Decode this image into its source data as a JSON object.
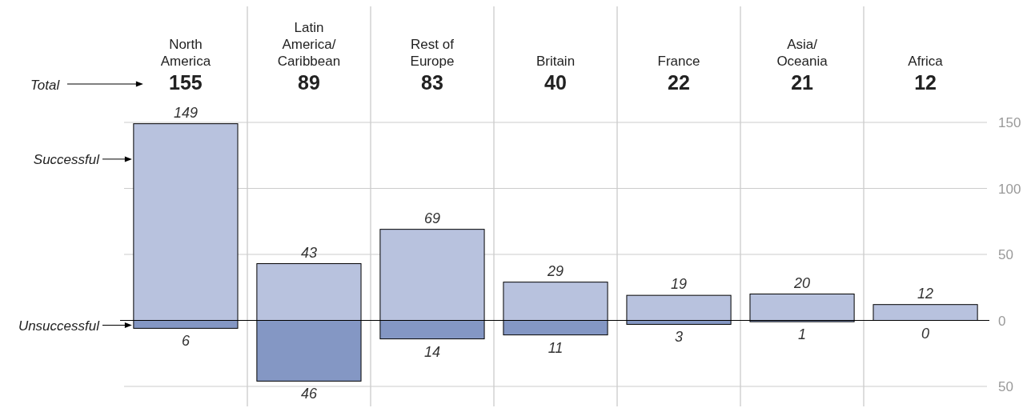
{
  "chart_data": {
    "type": "bar",
    "stacked": true,
    "categories": [
      "North America",
      "Latin America/ Caribbean",
      "Rest of Europe",
      "Britain",
      "France",
      "Asia/ Oceania",
      "Africa"
    ],
    "series": [
      {
        "name": "Successful",
        "color": "#b8c2de",
        "values": [
          149,
          43,
          69,
          29,
          19,
          20,
          12
        ],
        "value_labels": [
          "149",
          "43",
          "69",
          "29",
          "19",
          "20",
          "12"
        ]
      },
      {
        "name": "Unsuccessful",
        "color": "#8497c4",
        "values": [
          -6,
          -46,
          -14,
          -11,
          -3,
          -1,
          0
        ]
      }
    ],
    "annotations": [
      "Total",
      "155",
      "89",
      "83",
      "40",
      "22",
      "21",
      "12",
      {
        "text": "6",
        "x": "North America",
        "y": -6
      },
      {
        "text": "46",
        "x": "Latin America/ Caribbean",
        "y": -46
      },
      {
        "text": "14",
        "x": "Rest of Europe",
        "y": -14
      },
      {
        "text": "11",
        "x": "Britain",
        "y": -11
      },
      {
        "text": "3",
        "x": "France",
        "y": -3
      },
      {
        "text": "1",
        "x": "Asia/ Oceania",
        "y": -1
      },
      {
        "text": "0",
        "x": "Africa",
        "y": 0
      }
    ],
    "ylim": [
      -50,
      150
    ],
    "yticks": [
      {
        "value": -50,
        "label": "50"
      },
      0,
      50,
      100,
      150
    ],
    "grid": true,
    "legend": "left"
  }
}
